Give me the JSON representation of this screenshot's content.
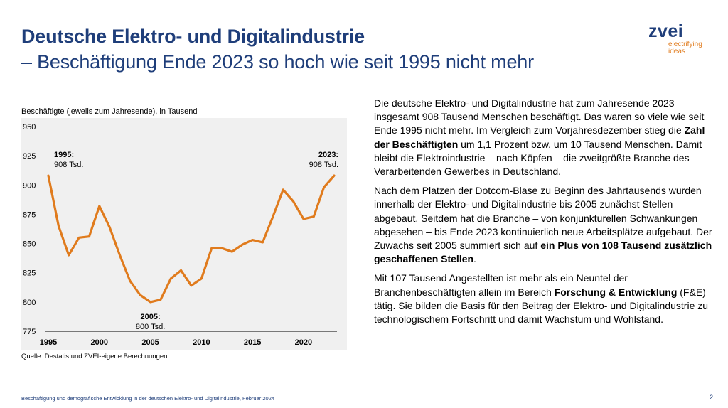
{
  "title": {
    "line1": "Deutsche Elektro- und Digitalindustrie",
    "line2": "– Beschäftigung Ende 2023 so hoch wie seit 1995 nicht mehr"
  },
  "logo": {
    "word": "zvei",
    "tagline_line1": "electrifying",
    "tagline_line2": "ideas"
  },
  "chart_caption": "Beschäftigte (jeweils zum Jahresende), in Tausend",
  "chart_source": "Quelle: Destatis und ZVEI-eigene Berechnungen",
  "chart_data": {
    "type": "line",
    "x": [
      1995,
      1996,
      1997,
      1998,
      1999,
      2000,
      2001,
      2002,
      2003,
      2004,
      2005,
      2006,
      2007,
      2008,
      2009,
      2010,
      2011,
      2012,
      2013,
      2014,
      2015,
      2016,
      2017,
      2018,
      2019,
      2020,
      2021,
      2022,
      2023
    ],
    "values": [
      908,
      865,
      840,
      855,
      856,
      882,
      864,
      840,
      818,
      806,
      800,
      802,
      820,
      827,
      814,
      820,
      846,
      846,
      843,
      849,
      853,
      851,
      873,
      896,
      886,
      871,
      873,
      898,
      908
    ],
    "ylim": [
      775,
      950
    ],
    "yticks": [
      "950",
      "925",
      "900",
      "875",
      "850",
      "825",
      "800",
      "775"
    ],
    "xticks": [
      "1995",
      "2000",
      "2005",
      "2010",
      "2015",
      "2020"
    ],
    "line_color": "#e07b1d",
    "grid": false,
    "annotations": [
      {
        "year_label": "1995:",
        "value_label": "908 Tsd."
      },
      {
        "year_label": "2005:",
        "value_label": "800 Tsd."
      },
      {
        "year_label": "2023:",
        "value_label": "908 Tsd."
      }
    ]
  },
  "body": {
    "p1_a": "Die deutsche Elektro- und Digitalindustrie hat zum Jahresende 2023 insgesamt 908 Tausend Menschen beschäftigt. Das waren so viele wie seit Ende 1995 nicht mehr. Im Vergleich zum Vorjahresdezember stieg die ",
    "p1_b": "Zahl der Beschäftigten",
    "p1_c": " um 1,1 Prozent bzw. um 10 Tausend Menschen. Damit bleibt die Elektroindustrie – nach Köpfen – die zweitgrößte Branche des Verarbeitenden Gewerbes in Deutschland.",
    "p2_a": "Nach dem Platzen der Dotcom-Blase zu Beginn des Jahrtausends wurden innerhalb der Elektro- und Digitalindustrie bis 2005 zunächst Stellen abgebaut. Seitdem hat die Branche – von konjunkturellen Schwankungen abgesehen – bis Ende 2023 kontinuierlich neue Arbeitsplätze aufgebaut. Der Zuwachs seit 2005 summiert sich auf ",
    "p2_b": "ein Plus von 108 Tausend zusätzlich geschaffenen Stellen",
    "p2_c": ".",
    "p3_a": "Mit 107 Tausend Angestellten ist mehr als ein Neuntel der Branchenbeschäftigten allein im Bereich ",
    "p3_b": "Forschung & Entwicklung",
    "p3_c": " (F&E) tätig. Sie bilden die Basis für den Beitrag der Elektro- und Digitalindustrie zu technologischem Fortschritt und damit Wachstum und Wohlstand."
  },
  "footer": "Beschäftigung und demografische Entwicklung in der deutschen Elektro- und Digitalindustrie, Februar 2024",
  "page_number": "2"
}
